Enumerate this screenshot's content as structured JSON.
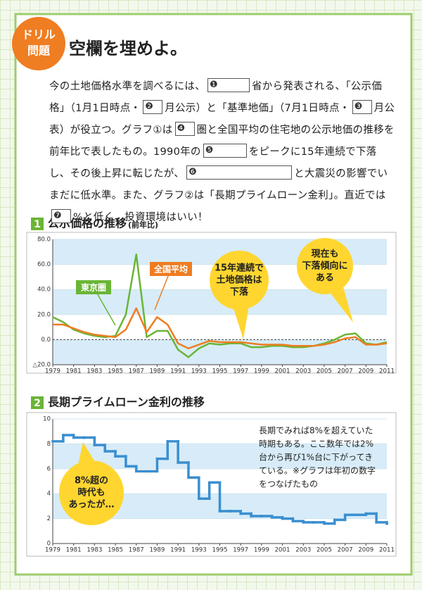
{
  "header": {
    "badge": [
      "ドリル",
      "問題"
    ],
    "title": "空欄を埋めよ。"
  },
  "paragraph": {
    "texts": [
      "今の土地価格水準を調べるには、",
      "省から発表される、「公示価格」（1月1日時点・",
      "月公示）と「基準地価」（7月1日時点・",
      "月公表）が役立つ。グラフ①は",
      "圏と全国平均の住宅地の公示地価の推移を前年比で表したもの。1990年の",
      "をピークに15年連続で下落し、その後上昇に転じたが、",
      "と大震災の影響でいまだに低水準。また、グラフ②は「長期プライムローン金利」。直近では",
      "%と低く、投資環境はいい！"
    ],
    "blanks": [
      "❶",
      "❷",
      "❸",
      "❹",
      "❺",
      "❻",
      "❼"
    ]
  },
  "chart_data": [
    {
      "type": "line",
      "number": "1",
      "title": "公示価格の推移",
      "subtitle": "(前年比)",
      "x": [
        1979,
        1980,
        1981,
        1982,
        1983,
        1984,
        1985,
        1986,
        1987,
        1988,
        1989,
        1990,
        1991,
        1992,
        1993,
        1994,
        1995,
        1996,
        1997,
        1998,
        1999,
        2000,
        2001,
        2002,
        2003,
        2004,
        2005,
        2006,
        2007,
        2008,
        2009,
        2010,
        2011
      ],
      "xlim": [
        1979,
        2011
      ],
      "xticks": [
        1979,
        1981,
        1983,
        1985,
        1987,
        1989,
        1991,
        1993,
        1995,
        1997,
        1999,
        2001,
        2003,
        2005,
        2007,
        2009,
        2011
      ],
      "ylim": [
        -20,
        80
      ],
      "yticks": [
        {
          "value": -20,
          "label": "△20.0"
        },
        {
          "value": 0,
          "label": "0.0"
        },
        {
          "value": 20,
          "label": "20.0"
        },
        {
          "value": 40,
          "label": "40.0"
        },
        {
          "value": 60,
          "label": "60.0"
        },
        {
          "value": 80,
          "label": "80.0"
        }
      ],
      "series": [
        {
          "name": "東京圏",
          "color": "#6ab536",
          "values": [
            18,
            14,
            8,
            5,
            3,
            2,
            3,
            20,
            68,
            2,
            7,
            7,
            -8,
            -14,
            -7,
            -3,
            -4,
            -3,
            -3,
            -6,
            -6,
            -5,
            -5,
            -6,
            -6,
            -5,
            -3,
            0,
            4,
            5,
            -3,
            -4,
            -2
          ]
        },
        {
          "name": "全国平均",
          "color": "#ee7d22",
          "values": [
            12,
            12,
            9,
            6,
            4,
            3,
            2,
            8,
            25,
            6,
            18,
            12,
            -3,
            -7,
            -4,
            -1,
            -2,
            -2,
            -2,
            -3,
            -4,
            -4,
            -4,
            -5,
            -5,
            -5,
            -4,
            -2,
            1,
            2,
            -4,
            -4,
            -3
          ]
        }
      ],
      "annotations": [
        [
          "15年連続で",
          "土地価格は",
          "下落"
        ],
        [
          "現在も",
          "下落傾向に",
          "ある"
        ]
      ]
    },
    {
      "type": "line",
      "step": true,
      "number": "2",
      "title": "長期プライムローン金利の推移",
      "x": [
        1979,
        1980,
        1981,
        1982,
        1983,
        1984,
        1985,
        1986,
        1987,
        1988,
        1989,
        1990,
        1991,
        1992,
        1993,
        1994,
        1995,
        1996,
        1997,
        1998,
        1999,
        2000,
        2001,
        2002,
        2003,
        2004,
        2005,
        2006,
        2007,
        2008,
        2009,
        2010,
        2011
      ],
      "xlim": [
        1979,
        2011
      ],
      "xticks": [
        1979,
        1981,
        1983,
        1985,
        1987,
        1989,
        1991,
        1993,
        1995,
        1997,
        1999,
        2001,
        2003,
        2005,
        2007,
        2009,
        2011
      ],
      "ylim": [
        0,
        10
      ],
      "yticks": [
        0,
        2,
        4,
        6,
        8,
        10
      ],
      "series": [
        {
          "color": "#3a8fd0",
          "values": [
            8.2,
            8.7,
            8.5,
            8.5,
            7.9,
            7.4,
            7.0,
            6.2,
            5.8,
            5.8,
            6.8,
            8.2,
            6.5,
            5.3,
            3.6,
            4.9,
            2.6,
            2.6,
            2.4,
            2.2,
            2.2,
            2.1,
            2.0,
            1.8,
            1.7,
            1.7,
            1.6,
            1.9,
            2.3,
            2.3,
            2.4,
            1.7,
            1.6
          ]
        }
      ],
      "annotations": [
        [
          "8%超の",
          "時代も",
          "あったが…"
        ]
      ],
      "note": [
        "長期でみれば8%を超えていた",
        "時期もある。ここ数年では2%",
        "台から再び1%台に下がってき",
        "ている。※グラフは年初の数字",
        "をつなげたもの"
      ]
    }
  ]
}
